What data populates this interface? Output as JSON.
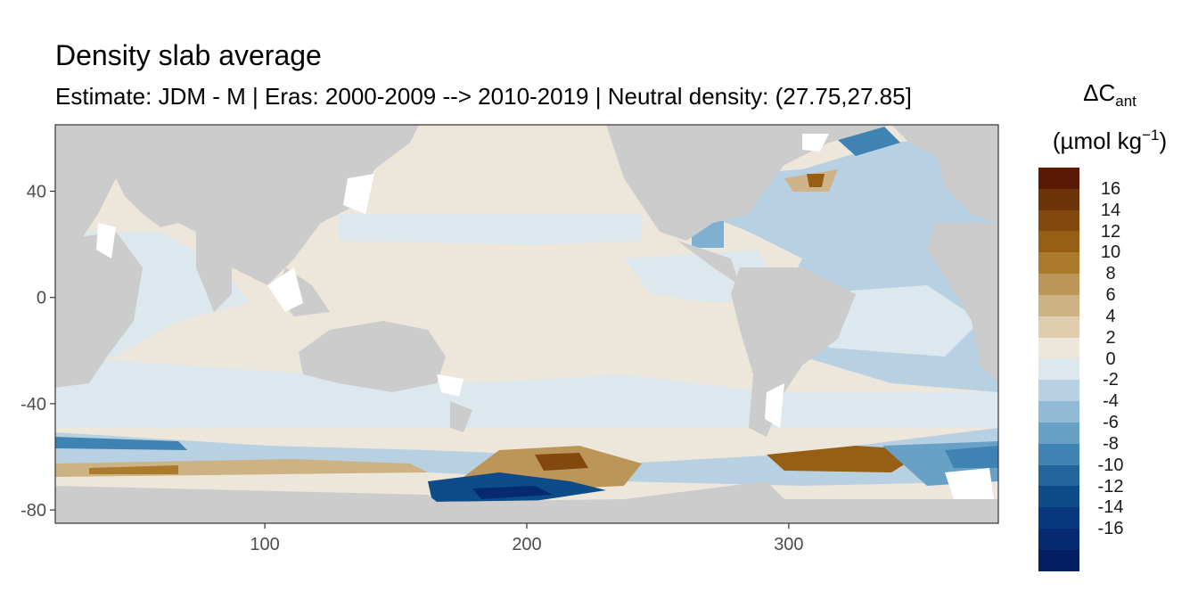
{
  "title": "Density slab average",
  "subtitle": "Estimate: JDM - M | Eras: 2000-2009 --> 2010-2019 | Neutral density: (27.75,27.85]",
  "legend": {
    "symbol": "ΔC",
    "subscript": "ant",
    "unit_open": "(µmol kg",
    "unit_sup": "−1",
    "unit_close": ")",
    "colors": [
      "#5a1a06",
      "#6e3409",
      "#83480c",
      "#975f16",
      "#ac7a2d",
      "#bc9658",
      "#cdb284",
      "#e0cdaf",
      "#ede6da",
      "#dde8ee",
      "#b7d1e2",
      "#90bad5",
      "#68a0c6",
      "#3f83b3",
      "#21659c",
      "#0d4c88",
      "#073880",
      "#052a72",
      "#031e62"
    ],
    "labels": [
      "16",
      "14",
      "12",
      "10",
      "8",
      "6",
      "4",
      "2",
      "0",
      "-2",
      "-4",
      "-6",
      "-8",
      "-10",
      "-12",
      "-14",
      "-16"
    ]
  },
  "axes": {
    "x_ticks": [
      "100",
      "200",
      "300"
    ],
    "y_ticks": [
      "40",
      "0",
      "-40",
      "-80"
    ],
    "xlim": [
      20,
      380
    ],
    "ylim": [
      -85,
      65
    ]
  },
  "colors": {
    "land": "#cccccc",
    "panel_border": "#333333",
    "near_zero_pos": "#ede6da",
    "near_zero_neg": "#dde8ee",
    "light_blue": "#b7d1e2",
    "mid_blue": "#7fb0d1",
    "dark_blue": "#0b4a86",
    "brown": "#9a6a26",
    "light_brown": "#cfb48a"
  }
}
